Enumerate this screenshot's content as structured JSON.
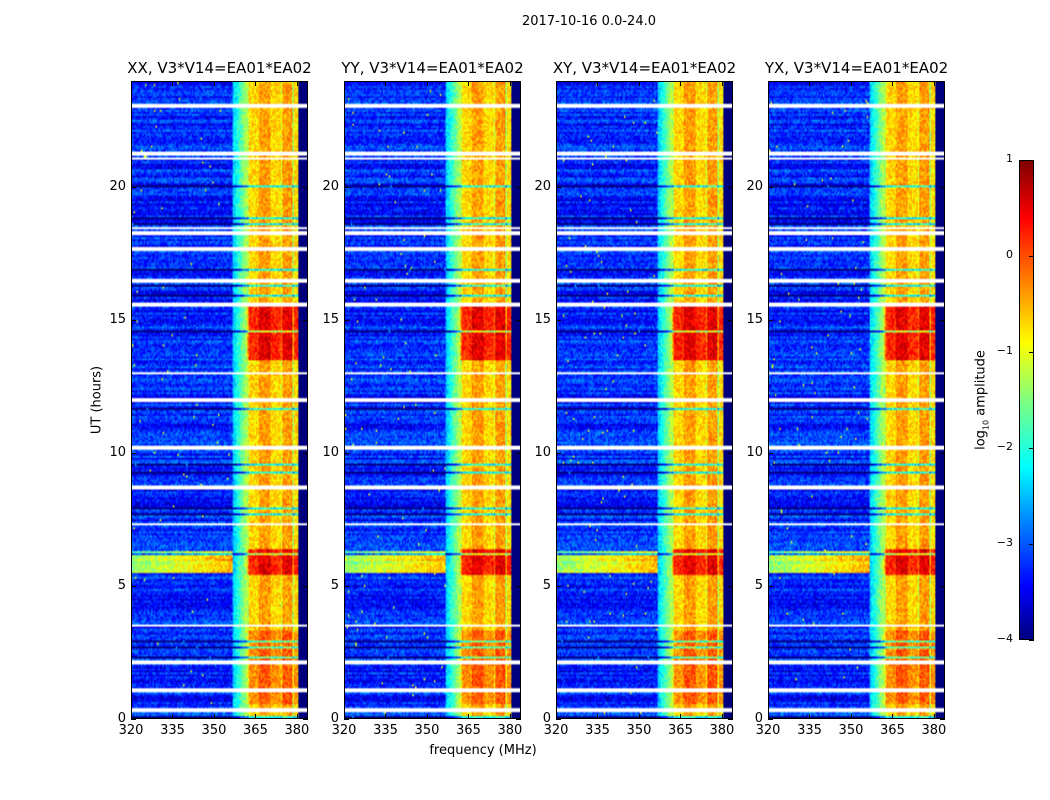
{
  "chart_data": {
    "type": "heatmap",
    "title": "2017-10-16 0.0-24.0",
    "xlabel": "frequency (MHz)",
    "ylabel": "UT (hours)",
    "xlim": [
      320,
      384
    ],
    "ylim": [
      0,
      24
    ],
    "xticks": [
      320,
      335,
      350,
      365,
      380
    ],
    "yticks": [
      0,
      5,
      10,
      15,
      20
    ],
    "panels": [
      {
        "title": "XX, V3*V14=EA01*EA02"
      },
      {
        "title": "YY, V3*V14=EA01*EA02"
      },
      {
        "title": "XY, V3*V14=EA01*EA02"
      },
      {
        "title": "YX, V3*V14=EA01*EA02"
      }
    ],
    "colorbar": {
      "label_prefix": "log",
      "label_sub": "10",
      "label_suffix": " amplitude",
      "range": [
        -4,
        1
      ],
      "ticks": [
        "1",
        "0",
        "−1",
        "−2",
        "−3",
        "−4"
      ],
      "colormap": "jet"
    },
    "structure": {
      "background_level": -3.2,
      "band_mhz": [
        362,
        381
      ],
      "band_level": -0.6,
      "strong_hours": [
        [
          5.4,
          6.4
        ],
        [
          13.5,
          15.5
        ],
        [
          0.5,
          3.3
        ]
      ],
      "flagged_hours": [
        0.3,
        1.05,
        2.1,
        3.5,
        7.3,
        8.7,
        10.2,
        12.0,
        13.0,
        15.6,
        16.5,
        17.7,
        18.3,
        18.5,
        21.1,
        21.3,
        23.1
      ]
    }
  }
}
